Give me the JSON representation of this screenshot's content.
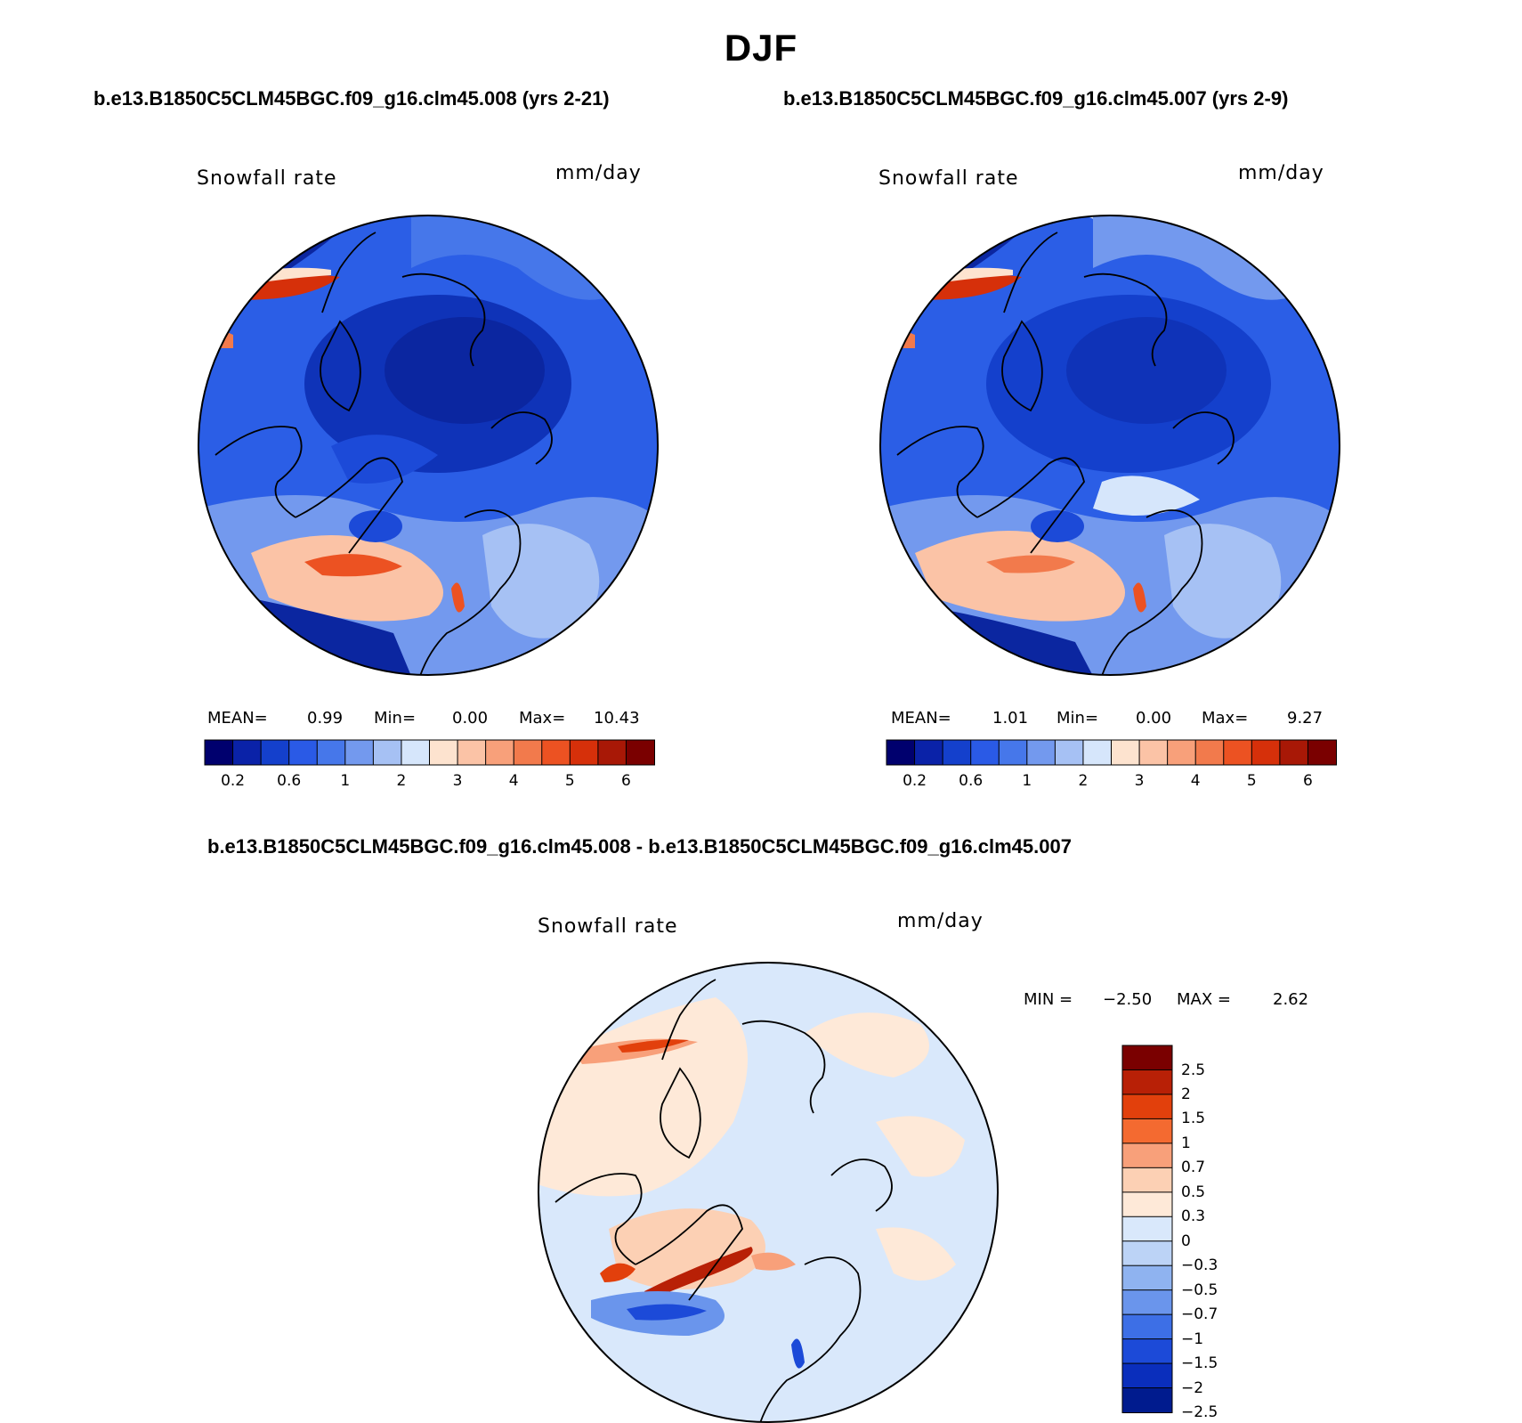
{
  "figure": {
    "title": "DJF",
    "subtitle_left": "b.e13.B1850C5CLM45BGC.f09_g16.clm45.008 (yrs 2-21)",
    "subtitle_right": "b.e13.B1850C5CLM45BGC.f09_g16.clm45.007 (yrs 2-9)",
    "diff_title": "b.e13.B1850C5CLM45BGC.f09_g16.clm45.008 - b.e13.B1850C5CLM45BGC.f09_g16.clm45.007"
  },
  "panels": {
    "left": {
      "variable": "Snowfall rate",
      "units": "mm/day",
      "mean_label": "MEAN=",
      "mean": "0.99",
      "min_label": "Min=",
      "min": "0.00",
      "max_label": "Max=",
      "max": "10.43"
    },
    "right": {
      "variable": "Snowfall rate",
      "units": "mm/day",
      "mean_label": "MEAN=",
      "mean": "1.01",
      "min_label": "Min=",
      "min": "0.00",
      "max_label": "Max=",
      "max": "9.27"
    },
    "diff": {
      "variable": "Snowfall rate",
      "units": "mm/day",
      "min_label": "MIN =",
      "min": "−2.50",
      "max_label": "MAX =",
      "max": "2.62"
    }
  },
  "colorbar_abs": {
    "colors": [
      "#00006e",
      "#0a22a8",
      "#1440cc",
      "#2a5ae6",
      "#4677ea",
      "#7399ee",
      "#a6c1f4",
      "#d6e6fb",
      "#fde3cf",
      "#fbc3a6",
      "#f8a07a",
      "#f27a4c",
      "#ec5222",
      "#d6300a",
      "#a81806",
      "#7a0000"
    ],
    "labels": [
      "0.2",
      "0.6",
      "1",
      "2",
      "3",
      "4",
      "5",
      "6"
    ]
  },
  "colorbar_diff": {
    "colors": [
      "#7a0000",
      "#b82006",
      "#e2400c",
      "#f46a30",
      "#f8a07a",
      "#fcd0b4",
      "#fee9d8",
      "#d9e8fb",
      "#bcd3f6",
      "#8fb3f0",
      "#6a95ec",
      "#3d6fe6",
      "#1c4ad8",
      "#0a2ebc",
      "#001b8e"
    ],
    "labels": [
      "2.5",
      "2",
      "1.5",
      "1",
      "0.7",
      "0.5",
      "0.3",
      "0",
      "−0.3",
      "−0.5",
      "−0.7",
      "−1",
      "−1.5",
      "−2",
      "−2.5"
    ]
  }
}
